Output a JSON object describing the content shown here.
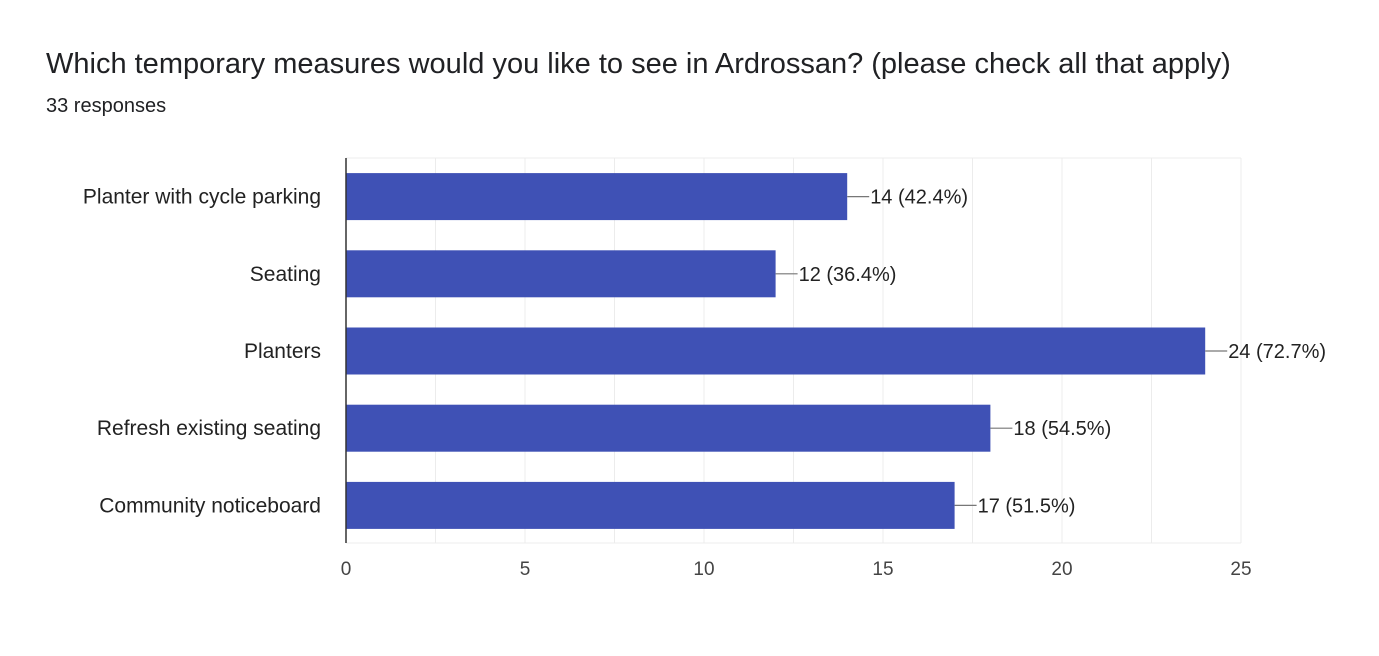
{
  "header": {
    "title": "Which temporary measures would you like to see in Ardrossan? (please check all that apply)",
    "subtitle": "33 responses"
  },
  "colors": {
    "bar": "#3f51b5",
    "grid": "#ececec",
    "axis": "#333333",
    "leader": "#777777"
  },
  "chart_data": {
    "type": "bar",
    "orientation": "horizontal",
    "categories": [
      "Planter with cycle parking",
      "Seating",
      "Planters",
      "Refresh existing seating",
      "Community noticeboard"
    ],
    "values": [
      14,
      12,
      24,
      18,
      17
    ],
    "data_labels": [
      "14 (42.4%)",
      "12 (36.4%)",
      "24 (72.7%)",
      "18 (54.5%)",
      "17 (51.5%)"
    ],
    "xlim": [
      0,
      25
    ],
    "xticks": [
      0,
      5,
      10,
      15,
      20,
      25
    ],
    "grid": true,
    "legend": "none"
  }
}
